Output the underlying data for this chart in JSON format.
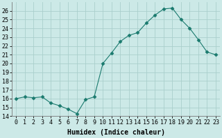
{
  "xlabel": "Humidex (Indice chaleur)",
  "x": [
    0,
    1,
    2,
    3,
    4,
    5,
    6,
    7,
    8,
    9,
    10,
    11,
    12,
    13,
    14,
    15,
    16,
    17,
    18,
    19,
    20,
    21,
    22,
    23
  ],
  "y": [
    16.0,
    16.2,
    16.1,
    16.2,
    15.5,
    15.2,
    14.8,
    14.3,
    15.9,
    16.2,
    20.0,
    21.2,
    22.5,
    23.2,
    23.5,
    24.6,
    25.5,
    26.2,
    26.3,
    25.0,
    24.0,
    22.7,
    21.3,
    21.0
  ],
  "line_color": "#1a7a6e",
  "marker": "D",
  "marker_size": 2.5,
  "bg_color": "#cce9e7",
  "grid_color": "#aacfcc",
  "ylim": [
    14,
    27
  ],
  "xlim": [
    -0.5,
    23.5
  ],
  "yticks": [
    14,
    15,
    16,
    17,
    18,
    19,
    20,
    21,
    22,
    23,
    24,
    25,
    26
  ],
  "xtick_labels": [
    "0",
    "1",
    "2",
    "3",
    "4",
    "5",
    "6",
    "7",
    "8",
    "9",
    "10",
    "11",
    "12",
    "13",
    "14",
    "15",
    "16",
    "17",
    "18",
    "19",
    "20",
    "21",
    "22",
    "23"
  ],
  "label_fontsize": 7,
  "tick_fontsize": 6
}
